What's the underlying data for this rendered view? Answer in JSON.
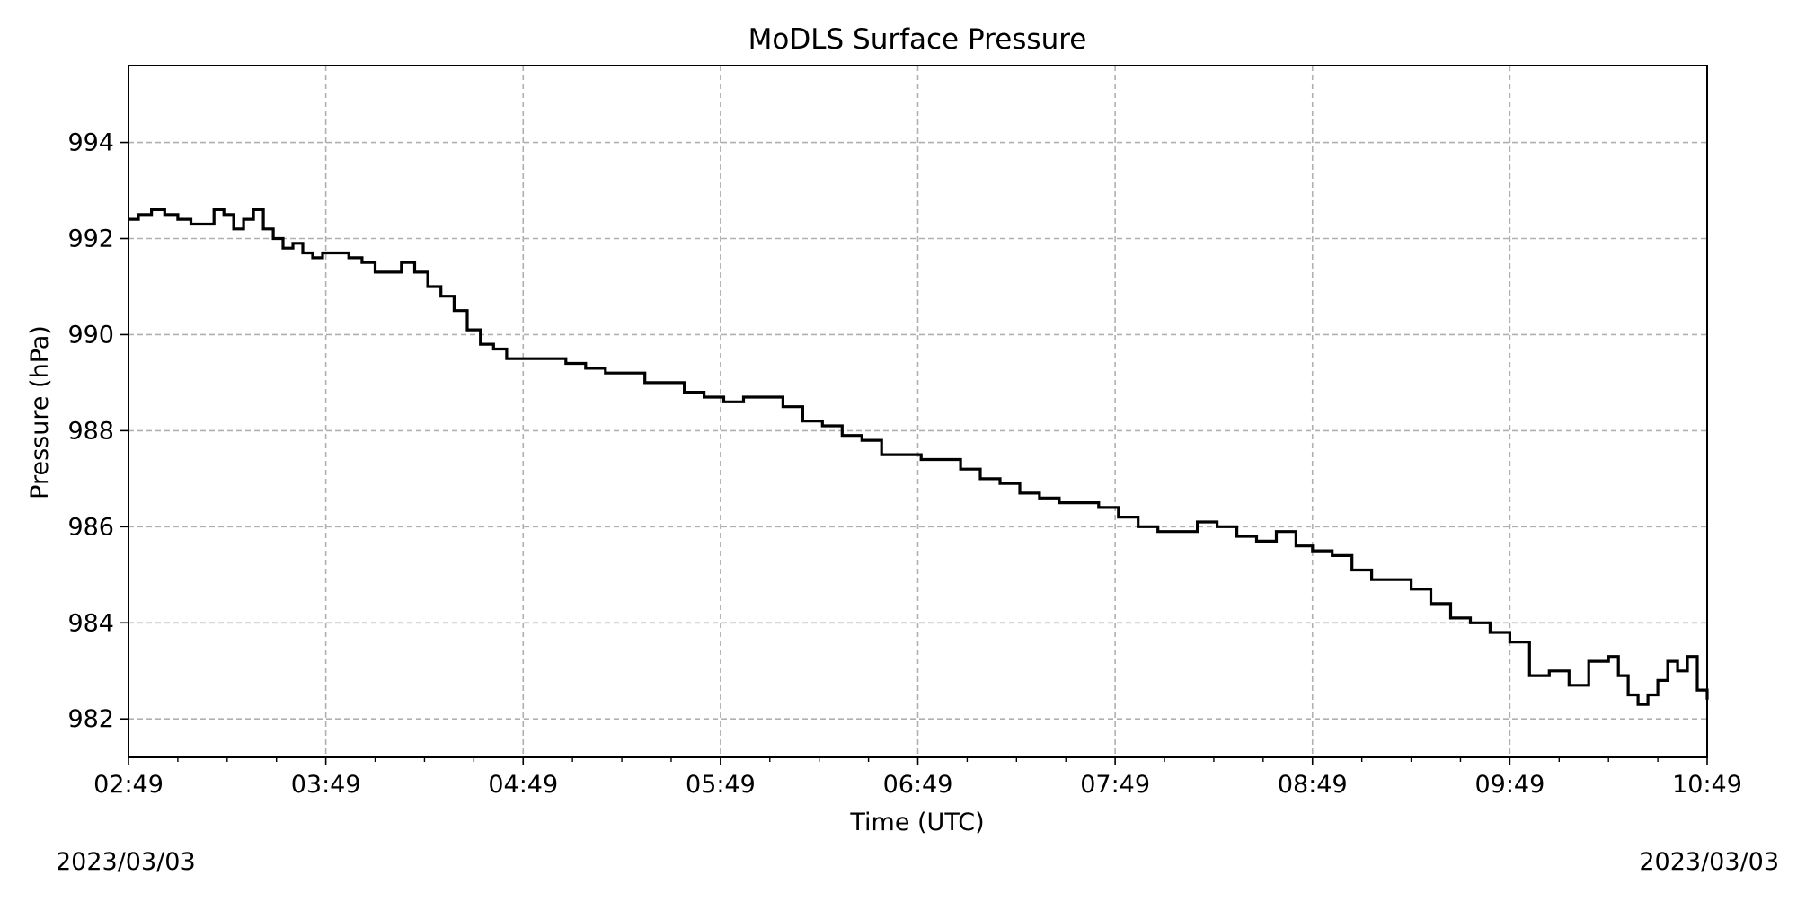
{
  "chart_data": {
    "type": "line",
    "title": "MoDLS Surface Pressure",
    "xlabel": "Time (UTC)",
    "ylabel": "Pressure (hPa)",
    "x_tick_labels": [
      "02:49",
      "03:49",
      "04:49",
      "05:49",
      "06:49",
      "07:49",
      "08:49",
      "09:49",
      "10:49"
    ],
    "y_tick_labels": [
      "982",
      "984",
      "986",
      "988",
      "990",
      "992",
      "994"
    ],
    "date_start": "2023/03/03",
    "date_end": "2023/03/03",
    "xlim": [
      "02:49",
      "10:49"
    ],
    "ylim": [
      981.2,
      995.6
    ],
    "grid": true,
    "line_color": "#000000",
    "grid_color": "#b0b0b0",
    "series": [
      {
        "x": [
          "02:49",
          "02:52",
          "02:56",
          "03:00",
          "03:04",
          "03:08",
          "03:12",
          "03:15",
          "03:18",
          "03:21",
          "03:24",
          "03:27",
          "03:30",
          "03:33",
          "03:36",
          "03:39",
          "03:42",
          "03:45",
          "03:48",
          "03:52",
          "03:56",
          "04:00",
          "04:04",
          "04:08",
          "04:12",
          "04:16",
          "04:20",
          "04:24",
          "04:28",
          "04:32",
          "04:36",
          "04:40",
          "04:44",
          "04:48",
          "04:55",
          "05:02",
          "05:08",
          "05:14",
          "05:20",
          "05:26",
          "05:32",
          "05:38",
          "05:44",
          "05:50",
          "05:56",
          "06:02",
          "06:08",
          "06:14",
          "06:20",
          "06:26",
          "06:32",
          "06:38",
          "06:44",
          "06:50",
          "06:56",
          "07:02",
          "07:08",
          "07:14",
          "07:20",
          "07:26",
          "07:32",
          "07:38",
          "07:44",
          "07:50",
          "07:56",
          "08:02",
          "08:08",
          "08:14",
          "08:20",
          "08:26",
          "08:32",
          "08:38",
          "08:44",
          "08:49",
          "08:55",
          "09:01",
          "09:07",
          "09:13",
          "09:19",
          "09:25",
          "09:31",
          "09:37",
          "09:43",
          "09:49",
          "09:55",
          "10:01",
          "10:07",
          "10:13",
          "10:19",
          "10:22",
          "10:25",
          "10:28",
          "10:31",
          "10:34",
          "10:37",
          "10:40",
          "10:43",
          "10:46",
          "10:49"
        ],
        "y": [
          992.4,
          992.5,
          992.6,
          992.5,
          992.4,
          992.3,
          992.3,
          992.6,
          992.5,
          992.2,
          992.4,
          992.6,
          992.2,
          992.0,
          991.8,
          991.9,
          991.7,
          991.6,
          991.7,
          991.7,
          991.6,
          991.5,
          991.3,
          991.3,
          991.5,
          991.3,
          991.0,
          990.8,
          990.5,
          990.1,
          989.8,
          989.7,
          989.5,
          989.5,
          989.5,
          989.4,
          989.3,
          989.2,
          989.2,
          989.0,
          989.0,
          988.8,
          988.7,
          988.6,
          988.7,
          988.7,
          988.5,
          988.2,
          988.1,
          987.9,
          987.8,
          987.5,
          987.5,
          987.4,
          987.4,
          987.2,
          987.0,
          986.9,
          986.7,
          986.6,
          986.5,
          986.5,
          986.4,
          986.2,
          986.0,
          985.9,
          985.9,
          986.1,
          986.0,
          985.8,
          985.7,
          985.9,
          985.6,
          985.5,
          985.4,
          985.1,
          984.9,
          984.9,
          984.7,
          984.4,
          984.1,
          984.0,
          983.8,
          983.6,
          982.9,
          983.0,
          982.7,
          983.2,
          983.3,
          982.9,
          982.5,
          982.3,
          982.5,
          982.8,
          983.2,
          983.0,
          983.3,
          982.6,
          982.4
        ]
      }
    ]
  }
}
